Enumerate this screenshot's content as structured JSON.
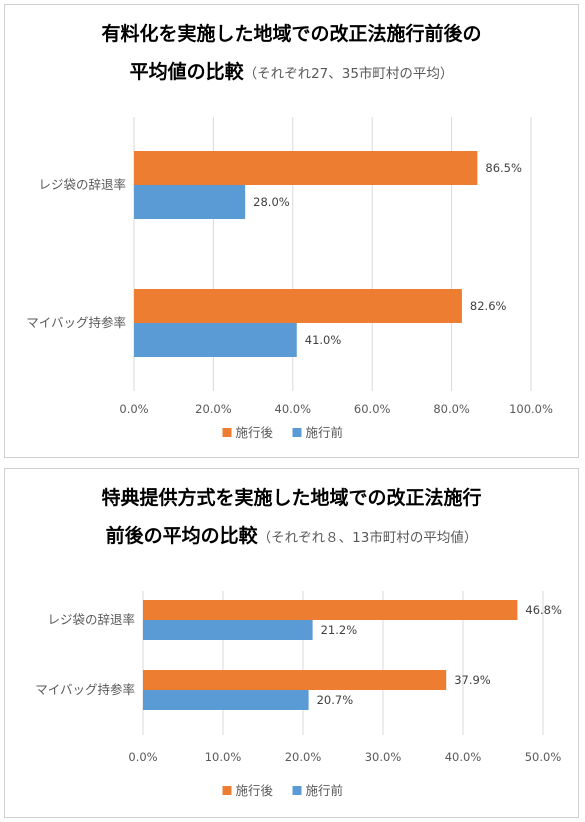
{
  "chart_data": [
    {
      "type": "bar",
      "orientation": "horizontal",
      "title_main_line1": "有料化を実施した地域での改正法施行前後の",
      "title_main_line2": "平均値の比較",
      "title_sub": "（それぞれ27、35市町村の平均）",
      "categories": [
        "レジ袋の辞退率",
        "マイバッグ持参率"
      ],
      "series": [
        {
          "name": "施行後",
          "color": "#ED7D31",
          "values": [
            86.5,
            82.6
          ],
          "labels": [
            "86.5%",
            "82.6%"
          ]
        },
        {
          "name": "施行前",
          "color": "#5B9BD5",
          "values": [
            28.0,
            41.0
          ],
          "labels": [
            "28.0%",
            "41.0%"
          ]
        }
      ],
      "xlim": [
        0,
        100
      ],
      "x_ticks": [
        0,
        20,
        40,
        60,
        80,
        100
      ],
      "x_tick_labels": [
        "0.0%",
        "20.0%",
        "40.0%",
        "60.0%",
        "80.0%",
        "100.0%"
      ],
      "grid": true,
      "legend_position": "bottom"
    },
    {
      "type": "bar",
      "orientation": "horizontal",
      "title_main_line1": "特典提供方式を実施した地域での改正法施行",
      "title_main_line2": "前後の平均の比較",
      "title_sub": "（それぞれ８、13市町村の平均値）",
      "categories": [
        "レジ袋の辞退率",
        "マイバッグ持参率"
      ],
      "series": [
        {
          "name": "施行後",
          "color": "#ED7D31",
          "values": [
            46.8,
            37.9
          ],
          "labels": [
            "46.8%",
            "37.9%"
          ]
        },
        {
          "name": "施行前",
          "color": "#5B9BD5",
          "values": [
            21.2,
            20.7
          ],
          "labels": [
            "21.2%",
            "20.7%"
          ]
        }
      ],
      "xlim": [
        0,
        50
      ],
      "x_ticks": [
        0,
        10,
        20,
        30,
        40,
        50
      ],
      "x_tick_labels": [
        "0.0%",
        "10.0%",
        "20.0%",
        "30.0%",
        "40.0%",
        "50.0%"
      ],
      "grid": true,
      "legend_position": "bottom"
    }
  ]
}
